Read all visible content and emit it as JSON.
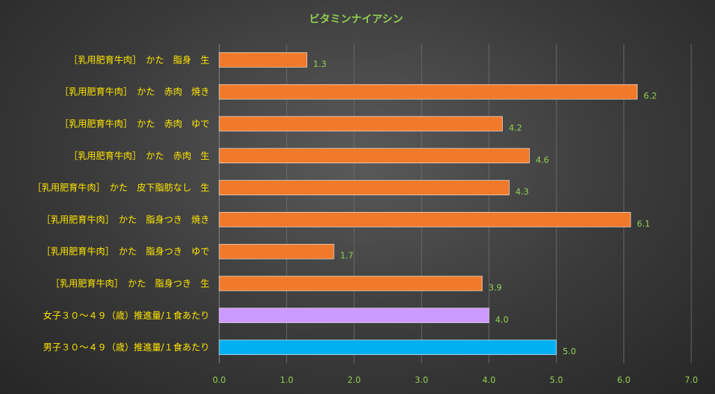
{
  "chart_data": {
    "type": "bar",
    "orientation": "horizontal",
    "title": "ビタミンナイアシン",
    "categories": [
      "［乳用肥育牛肉］　かた　脂身　生",
      "［乳用肥育牛肉］　かた　赤肉　焼き",
      "［乳用肥育牛肉］　かた　赤肉　ゆで",
      "［乳用肥育牛肉］　かた　赤肉　生",
      "［乳用肥育牛肉］　かた　皮下脂肪なし　生",
      "［乳用肥育牛肉］　かた　脂身つき　焼き",
      "［乳用肥育牛肉］　かた　脂身つき　ゆで",
      "［乳用肥育牛肉］　かた　脂身つき　生",
      "女子３０～４９（歳）推進量/１食あたり",
      "男子３０～４９（歳）推進量/１食あたり"
    ],
    "values": [
      1.3,
      6.2,
      4.2,
      4.6,
      4.3,
      6.1,
      1.7,
      3.9,
      4.0,
      5.0
    ],
    "value_labels": [
      "1.3",
      "6.2",
      "4.2",
      "4.6",
      "4.3",
      "6.1",
      "1.7",
      "3.9",
      "4.0",
      "5.0"
    ],
    "bar_colors": [
      "#f07a2a",
      "#f07a2a",
      "#f07a2a",
      "#f07a2a",
      "#f07a2a",
      "#f07a2a",
      "#f07a2a",
      "#f07a2a",
      "#cc99ff",
      "#00b0f0"
    ],
    "xlim": [
      0,
      7
    ],
    "xticks": [
      "0.0",
      "1.0",
      "2.0",
      "3.0",
      "4.0",
      "5.0",
      "6.0",
      "7.0"
    ],
    "grid": true,
    "legend": "none"
  }
}
